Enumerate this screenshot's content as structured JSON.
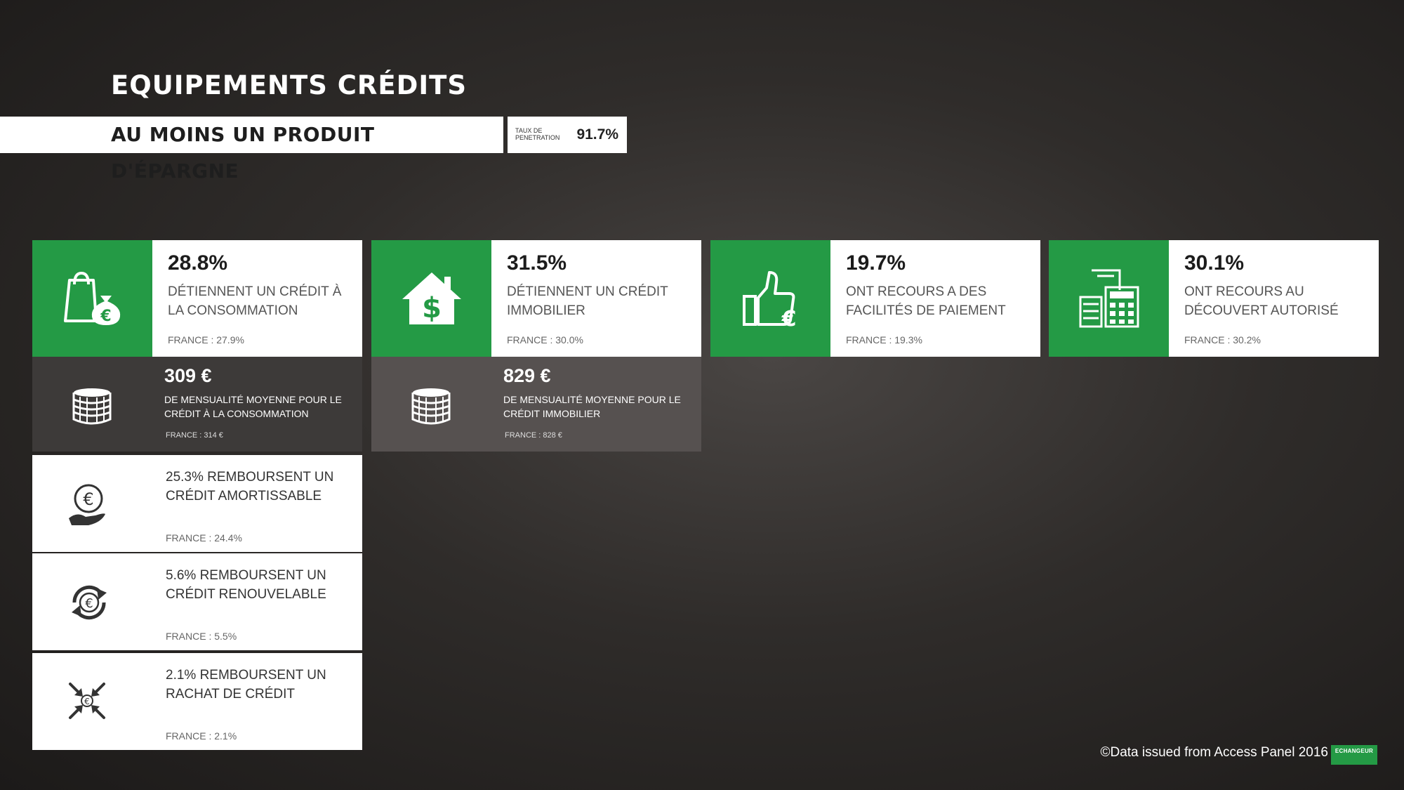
{
  "page": {
    "title": "EQUIPEMENTS CRÉDITS",
    "subtitle": "AU MOINS UN PRODUIT D'ÉPARGNE",
    "rate_label": "TAUX DE PENETRATION",
    "rate_value": "91.7%"
  },
  "stats": [
    {
      "percent": "28.8%",
      "desc": "DÉTIENNENT UN CRÉDIT À LA CONSOMMATION",
      "france": "FRANCE : 27.9%",
      "icon": "money-bag-euro-icon"
    },
    {
      "percent": "31.5%",
      "desc": "DÉTIENNENT UN CRÉDIT IMMOBILIER",
      "france": "FRANCE : 30.0%",
      "icon": "house-dollar-icon"
    },
    {
      "percent": "19.7%",
      "desc": "ONT RECOURS A DES FACILITÉS DE PAIEMENT",
      "france": "FRANCE : 19.3%",
      "icon": "thumbs-up-euro-icon"
    },
    {
      "percent": "30.1%",
      "desc": "ONT RECOURS AU DÉCOUVERT AUTORISÉ",
      "france": "FRANCE : 30.2%",
      "icon": "documents-calculator-icon"
    }
  ],
  "monthly": [
    {
      "amount": "309 €",
      "desc": "DE MENSUALITÉ MOYENNE POUR LE CRÉDIT À LA CONSOMMATION",
      "france": "FRANCE : 314 €",
      "icon": "coin-stack-icon"
    },
    {
      "amount": "829 €",
      "desc": "DE MENSUALITÉ MOYENNE POUR LE CRÉDIT IMMOBILIER",
      "france": "FRANCE : 828 €",
      "icon": "coin-stack-icon"
    }
  ],
  "repayments": [
    {
      "text": "25.3% REMBOURSENT UN CRÉDIT AMORTISSABLE",
      "france": "FRANCE : 24.4%",
      "icon": "hand-euro-coin-icon"
    },
    {
      "text": "5.6% REMBOURSENT UN CRÉDIT RENOUVELABLE",
      "france": "FRANCE : 5.5%",
      "icon": "euro-cycle-icon"
    },
    {
      "text": "2.1% REMBOURSENT UN RACHAT DE CRÉDIT",
      "france": "FRANCE : 2.1%",
      "icon": "euro-arrows-in-icon"
    }
  ],
  "footer": {
    "credit": "©Data issued from Access Panel 2016",
    "logo_text": "ECHANGEUR"
  },
  "colors": {
    "accent": "#249a45",
    "monthly_1": "#3d3a39",
    "monthly_2": "#565150"
  }
}
